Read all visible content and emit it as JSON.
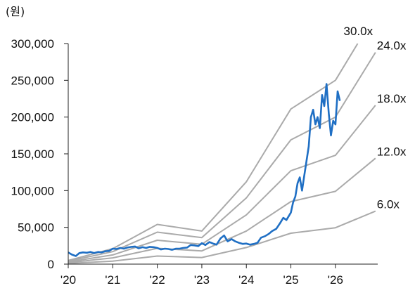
{
  "chart_data": {
    "type": "line",
    "unit_label": "(원)",
    "x_ticks": [
      "'20",
      "'21",
      "'22",
      "'23",
      "'24",
      "'25",
      "'26"
    ],
    "xlim": [
      2020.0,
      2026.95
    ],
    "ylim": [
      0,
      300000
    ],
    "y_ticks": [
      0,
      50000,
      100000,
      150000,
      200000,
      250000,
      300000
    ],
    "y_tick_labels": [
      "0",
      "50,000",
      "100,000",
      "150,000",
      "200,000",
      "250,000",
      "300,000"
    ],
    "colors": {
      "bands": "#aaaaaa",
      "price": "#1f6fc4",
      "axis": "#222222"
    },
    "grid": false,
    "bands": [
      {
        "name": "30.0x",
        "x": [
          2020.0,
          2021.0,
          2022.0,
          2023.0,
          2024.0,
          2025.0,
          2026.0,
          2026.5
        ],
        "values": [
          5000,
          21000,
          54000,
          45000,
          112000,
          211000,
          250000,
          300000
        ]
      },
      {
        "name": "24.0x",
        "x": [
          2020.0,
          2021.0,
          2022.0,
          2023.0,
          2024.0,
          2025.0,
          2026.0,
          2026.9
        ],
        "values": [
          4000,
          17000,
          43500,
          36000,
          90000,
          169000,
          200000,
          288000
        ]
      },
      {
        "name": "18.0x",
        "x": [
          2020.0,
          2021.0,
          2022.0,
          2023.0,
          2024.0,
          2025.0,
          2026.0,
          2026.9
        ],
        "values": [
          3000,
          12500,
          32500,
          27000,
          67000,
          127000,
          148000,
          216000
        ]
      },
      {
        "name": "12.0x",
        "x": [
          2020.0,
          2021.0,
          2022.0,
          2023.0,
          2024.0,
          2025.0,
          2026.0,
          2026.9
        ],
        "values": [
          2000,
          8500,
          21500,
          18000,
          45000,
          85000,
          99000,
          144000
        ]
      },
      {
        "name": "6.0x",
        "x": [
          2020.0,
          2021.0,
          2022.0,
          2023.0,
          2024.0,
          2025.0,
          2026.0,
          2026.9
        ],
        "values": [
          1000,
          4000,
          11000,
          9000,
          22500,
          42000,
          49500,
          72000
        ]
      }
    ],
    "price": {
      "x": [
        2020.0,
        2020.08,
        2020.17,
        2020.25,
        2020.33,
        2020.42,
        2020.5,
        2020.58,
        2020.67,
        2020.75,
        2020.83,
        2020.92,
        2021.0,
        2021.08,
        2021.17,
        2021.25,
        2021.33,
        2021.42,
        2021.5,
        2021.58,
        2021.67,
        2021.75,
        2021.83,
        2021.92,
        2022.0,
        2022.08,
        2022.17,
        2022.25,
        2022.33,
        2022.42,
        2022.5,
        2022.58,
        2022.67,
        2022.75,
        2022.83,
        2022.92,
        2023.0,
        2023.08,
        2023.17,
        2023.25,
        2023.33,
        2023.42,
        2023.5,
        2023.58,
        2023.67,
        2023.75,
        2023.83,
        2023.92,
        2024.0,
        2024.08,
        2024.17,
        2024.25,
        2024.33,
        2024.42,
        2024.5,
        2024.58,
        2024.67,
        2024.75,
        2024.83,
        2024.9,
        2025.0,
        2025.05,
        2025.1,
        2025.15,
        2025.2,
        2025.25,
        2025.3,
        2025.35,
        2025.4,
        2025.45,
        2025.5,
        2025.55,
        2025.6,
        2025.65,
        2025.7,
        2025.75,
        2025.8,
        2025.85,
        2025.9,
        2025.95,
        2026.0,
        2026.05,
        2026.1
      ],
      "values": [
        16000,
        13000,
        11000,
        15000,
        16000,
        15500,
        16500,
        15000,
        16500,
        16000,
        17500,
        18000,
        21000,
        20500,
        22000,
        21000,
        22500,
        23500,
        24000,
        21500,
        23000,
        22000,
        23500,
        23000,
        22000,
        20000,
        21000,
        20500,
        19500,
        21000,
        21000,
        22000,
        22500,
        26000,
        25500,
        24500,
        28500,
        26000,
        30000,
        28000,
        26500,
        35000,
        39000,
        31000,
        34000,
        31000,
        29000,
        27500,
        28000,
        26500,
        27500,
        29000,
        36000,
        38000,
        41000,
        45000,
        48000,
        55000,
        63000,
        60000,
        70000,
        84000,
        92000,
        110000,
        118000,
        100000,
        120000,
        140000,
        160000,
        200000,
        210000,
        190000,
        200000,
        185000,
        230000,
        215000,
        245000,
        205000,
        175000,
        195000,
        190000,
        235000,
        222000
      ]
    }
  }
}
